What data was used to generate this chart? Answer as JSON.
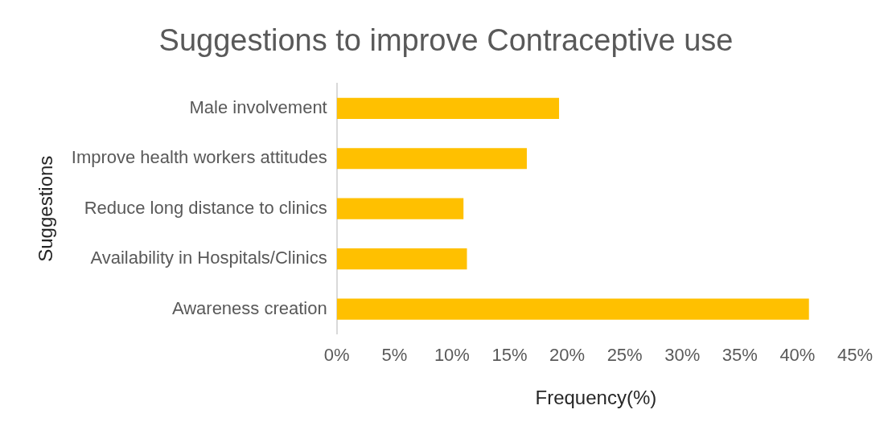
{
  "chart_data": {
    "type": "bar",
    "orientation": "horizontal",
    "title": "Suggestions to improve Contraceptive use",
    "xlabel": "Frequency(%)",
    "ylabel": "Suggestions",
    "categories": [
      "Male involvement",
      "Improve health workers attitudes",
      "Reduce long distance to clinics",
      "Availability in Hospitals/Clinics",
      "Awareness creation"
    ],
    "values": [
      19.3,
      16.5,
      11.0,
      11.3,
      41.0
    ],
    "color": "#ffc000",
    "xlim": [
      0,
      45
    ],
    "xticks": [
      {
        "value": 0,
        "label": "0%"
      },
      {
        "value": 5,
        "label": "5%"
      },
      {
        "value": 10,
        "label": "10%"
      },
      {
        "value": 15,
        "label": "15%"
      },
      {
        "value": 20,
        "label": "20%"
      },
      {
        "value": 25,
        "label": "25%"
      },
      {
        "value": 30,
        "label": "30%"
      },
      {
        "value": 35,
        "label": "35%"
      },
      {
        "value": 40,
        "label": "40%"
      },
      {
        "value": 45,
        "label": "45%"
      }
    ],
    "grid": false,
    "legend": false
  }
}
